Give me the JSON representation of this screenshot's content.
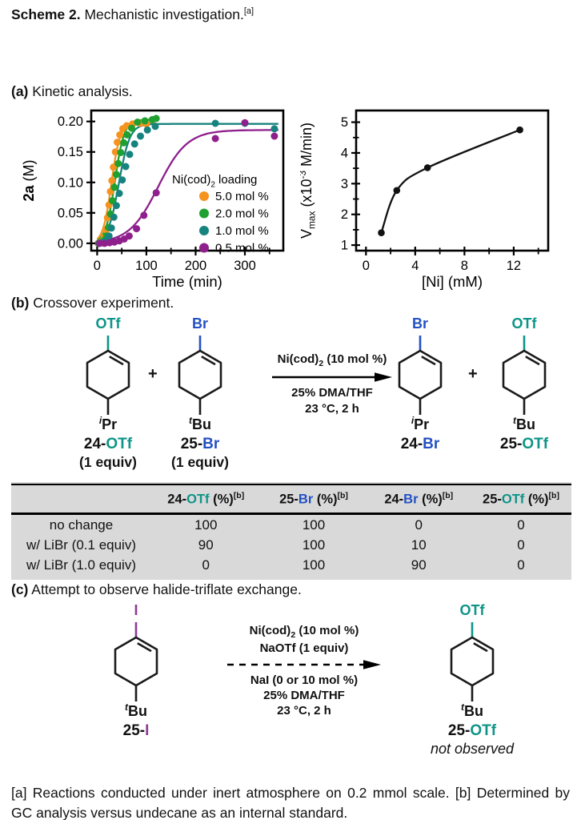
{
  "title": {
    "bold": "Scheme 2.",
    "text": " Mechanistic investigation.",
    "sup": "[a]"
  },
  "sections": {
    "a": {
      "label": "(a)",
      "text": " Kinetic analysis."
    },
    "b": {
      "label": "(b)",
      "text": " Crossover experiment."
    },
    "c": {
      "label": "(c)",
      "text": " Attempt to observe halide-triflate exchange."
    }
  },
  "colors": {
    "teal": "#0E9488",
    "blue": "#2350C4",
    "purple": "#8E3A96",
    "orange": "#F6921E",
    "green": "#1FA030",
    "tealDot": "#17837E",
    "purpleDot": "#8E1F8C",
    "tableBg": "#D9D9D9"
  },
  "chart_data": [
    {
      "type": "line",
      "xlabel": "Time (min)",
      "ylabel_parts": [
        {
          "t": "2a",
          "b": true
        },
        {
          "t": " (M)"
        }
      ],
      "xlim": [
        -12,
        378
      ],
      "ylim": [
        -0.012,
        0.218
      ],
      "xticks": {
        "major": [
          0,
          100,
          200,
          300
        ],
        "labels": [
          "0",
          "100",
          "200",
          "300"
        ],
        "minor": [
          50,
          150,
          250,
          350
        ]
      },
      "yticks": {
        "major": [
          0,
          0.05,
          0.1,
          0.15,
          0.2
        ],
        "labels": [
          "0.00",
          "0.05",
          "0.10",
          "0.15",
          "0.20"
        ],
        "minor": []
      },
      "legend": {
        "title_parts": [
          {
            "t": "Ni(cod)"
          },
          {
            "t": "2",
            "sub": true
          },
          {
            "t": " loading"
          }
        ],
        "position": "inside-right",
        "entries": [
          {
            "label": "5.0 mol %",
            "color": "#F6921E"
          },
          {
            "label": "2.0 mol %",
            "color": "#1FA030"
          },
          {
            "label": "1.0 mol %",
            "color": "#17837E"
          },
          {
            "label": "0.5 mol %",
            "color": "#8E1F8C"
          }
        ]
      },
      "series": [
        {
          "name": "5.0 mol %",
          "color": "#F6921E",
          "marker_r": 4.5,
          "x": [
            2,
            5,
            8,
            11,
            15,
            18,
            21,
            24,
            27,
            30,
            33,
            37,
            41,
            46,
            52,
            60,
            72,
            88,
            100
          ],
          "y": [
            0.0,
            0.001,
            0.002,
            0.004,
            0.01,
            0.022,
            0.042,
            0.063,
            0.085,
            0.103,
            0.125,
            0.15,
            0.166,
            0.178,
            0.188,
            0.193,
            0.196,
            0.197,
            0.196
          ],
          "fit": {
            "ymax": 0.197,
            "t50": 29,
            "k": 0.115,
            "domain": [
              0,
              120
            ]
          }
        },
        {
          "name": "2.0 mol %",
          "color": "#1FA030",
          "marker_r": 4.5,
          "x": [
            3,
            7,
            11,
            15,
            19,
            23,
            27,
            31,
            35,
            39,
            43,
            48,
            54,
            61,
            70,
            82,
            97,
            112,
            120
          ],
          "y": [
            0.0,
            0.001,
            0.002,
            0.005,
            0.012,
            0.026,
            0.048,
            0.07,
            0.092,
            0.113,
            0.131,
            0.149,
            0.165,
            0.178,
            0.189,
            0.199,
            0.201,
            0.203,
            0.205
          ],
          "fit": {
            "ymax": 0.203,
            "t50": 36,
            "k": 0.105,
            "domain": [
              0,
              125
            ]
          }
        },
        {
          "name": "1.0 mol %",
          "color": "#17837E",
          "marker_r": 4.5,
          "x": [
            4,
            9,
            14,
            19,
            24,
            29,
            34,
            39,
            45,
            51,
            58,
            66,
            76,
            88,
            102,
            118,
            240,
            300,
            360
          ],
          "y": [
            0.0,
            0.001,
            0.002,
            0.005,
            0.012,
            0.025,
            0.043,
            0.062,
            0.082,
            0.104,
            0.126,
            0.146,
            0.163,
            0.176,
            0.186,
            0.192,
            0.197,
            0.197,
            0.188
          ],
          "fit": {
            "ymax": 0.196,
            "t50": 44,
            "k": 0.09,
            "domain": [
              0,
              368
            ]
          }
        },
        {
          "name": "0.5 mol %",
          "color": "#8E1F8C",
          "marker_r": 4.5,
          "x": [
            5,
            15,
            25,
            35,
            45,
            55,
            65,
            80,
            95,
            120,
            240,
            300,
            360
          ],
          "y": [
            0.0,
            0.0,
            0.001,
            0.002,
            0.004,
            0.007,
            0.012,
            0.024,
            0.046,
            0.083,
            0.172,
            0.198,
            0.176
          ],
          "fit": {
            "ymax": 0.186,
            "t50": 124,
            "k": 0.034,
            "domain": [
              0,
              368
            ]
          }
        }
      ]
    },
    {
      "type": "line",
      "xlabel": "[Ni] (mM)",
      "ylabel_parts": [
        {
          "t": "V"
        },
        {
          "t": "max",
          "sub": true
        },
        {
          "t": " (x10"
        },
        {
          "t": "-3",
          "sup": true
        },
        {
          "t": " M/min)"
        }
      ],
      "xlim": [
        -0.8,
        14.8
      ],
      "ylim": [
        0.82,
        5.38
      ],
      "xticks": {
        "major": [
          0,
          4,
          8,
          12
        ],
        "labels": [
          "0",
          "4",
          "8",
          "12"
        ],
        "minor": [
          2,
          6,
          10,
          14
        ]
      },
      "yticks": {
        "major": [
          1,
          2,
          3,
          4,
          5
        ],
        "labels": [
          "1",
          "2",
          "3",
          "4",
          "5"
        ],
        "minor": [
          1.5,
          2.5,
          3.5,
          4.5
        ]
      },
      "series": [
        {
          "name": "Vmax",
          "color": "#111111",
          "marker_r": 4.3,
          "x": [
            1.25,
            2.5,
            5,
            12.5
          ],
          "y": [
            1.4,
            2.78,
            3.52,
            4.75
          ]
        }
      ]
    }
  ],
  "scheme_b": {
    "plus": "+",
    "reactants": [
      {
        "top": "OTf",
        "top_color": "#0E9488",
        "sub_pre": "i",
        "sub": "Pr",
        "name_parts": [
          {
            "t": "24-"
          },
          {
            "t": "OTf",
            "c": "#0E9488"
          }
        ],
        "equiv": "(1 equiv)"
      },
      {
        "top": "Br",
        "top_color": "#2350C4",
        "sub_pre": "t",
        "sub": "Bu",
        "name_parts": [
          {
            "t": "25-"
          },
          {
            "t": "Br",
            "c": "#2350C4"
          }
        ],
        "equiv": "(1 equiv)"
      }
    ],
    "arrow": {
      "dashed": false,
      "above_lines": [
        [
          {
            "t": "Ni(cod)"
          },
          {
            "t": "2",
            "sub": true
          },
          {
            "t": " (10 mol %)"
          }
        ]
      ],
      "below_lines": [
        [
          {
            "t": "25% DMA/THF"
          }
        ],
        [
          {
            "t": "23 °C, 2 h"
          }
        ]
      ]
    },
    "products": [
      {
        "top": "Br",
        "top_color": "#2350C4",
        "sub_pre": "i",
        "sub": "Pr",
        "name_parts": [
          {
            "t": "24-"
          },
          {
            "t": "Br",
            "c": "#2350C4"
          }
        ]
      },
      {
        "top": "OTf",
        "top_color": "#0E9488",
        "sub_pre": "t",
        "sub": "Bu",
        "name_parts": [
          {
            "t": "25-"
          },
          {
            "t": "OTf",
            "c": "#0E9488"
          }
        ]
      }
    ]
  },
  "table": {
    "headers": [
      [],
      [
        {
          "t": "24-"
        },
        {
          "t": "OTf",
          "c": "#0E9488"
        },
        {
          "t": " (%)"
        },
        {
          "t": "[b]",
          "sup": true
        }
      ],
      [
        {
          "t": "25-"
        },
        {
          "t": "Br",
          "c": "#2350C4"
        },
        {
          "t": " (%)"
        },
        {
          "t": "[b]",
          "sup": true
        }
      ],
      [
        {
          "t": "24-"
        },
        {
          "t": "Br",
          "c": "#2350C4"
        },
        {
          "t": " (%)"
        },
        {
          "t": "[b]",
          "sup": true
        }
      ],
      [
        {
          "t": "25-"
        },
        {
          "t": "OTf",
          "c": "#0E9488"
        },
        {
          "t": " (%)"
        },
        {
          "t": "[b]",
          "sup": true
        }
      ]
    ],
    "rows": [
      {
        "label": "no change",
        "values": [
          "100",
          "100",
          "0",
          "0"
        ]
      },
      {
        "label": "w/ LiBr (0.1 equiv)",
        "values": [
          "90",
          "100",
          "10",
          "0"
        ]
      },
      {
        "label": "w/ LiBr (1.0 equiv)",
        "values": [
          "0",
          "100",
          "90",
          "0"
        ]
      }
    ]
  },
  "scheme_c": {
    "reactant": {
      "top": "I",
      "top_color": "#8E3A96",
      "sub_pre": "t",
      "sub": "Bu",
      "name_parts": [
        {
          "t": "25-"
        },
        {
          "t": "I",
          "c": "#8E3A96"
        }
      ]
    },
    "arrow": {
      "dashed": true,
      "above_lines": [
        [
          {
            "t": "Ni(cod)"
          },
          {
            "t": "2",
            "sub": true
          },
          {
            "t": " (10 mol %)"
          }
        ],
        [
          {
            "t": "NaOTf (1 equiv)"
          }
        ]
      ],
      "below_lines": [
        [
          {
            "t": "NaI (0 or 10 mol %)"
          }
        ],
        [
          {
            "t": "25% DMA/THF"
          }
        ],
        [
          {
            "t": "23 °C, 2 h"
          }
        ]
      ]
    },
    "product": {
      "top": "OTf",
      "top_color": "#0E9488",
      "sub_pre": "t",
      "sub": "Bu",
      "name_parts": [
        {
          "t": "25-"
        },
        {
          "t": "OTf",
          "c": "#0E9488"
        }
      ],
      "note": "not observed"
    }
  },
  "footnote": "[a] Reactions conducted under inert atmosphere on 0.2 mmol scale. [b] Determined by GC analysis versus undecane as an internal standard."
}
